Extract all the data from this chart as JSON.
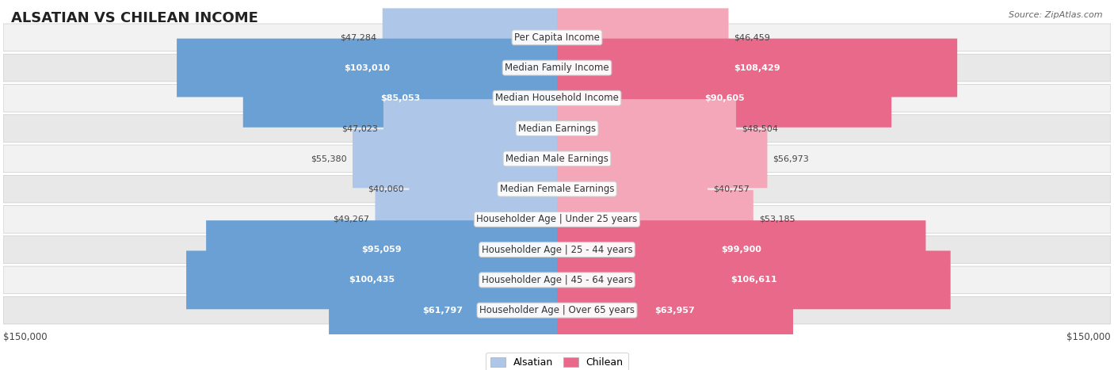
{
  "title": "ALSATIAN VS CHILEAN INCOME",
  "source": "Source: ZipAtlas.com",
  "categories": [
    "Per Capita Income",
    "Median Family Income",
    "Median Household Income",
    "Median Earnings",
    "Median Male Earnings",
    "Median Female Earnings",
    "Householder Age | Under 25 years",
    "Householder Age | 25 - 44 years",
    "Householder Age | 45 - 64 years",
    "Householder Age | Over 65 years"
  ],
  "alsatian_values": [
    47284,
    103010,
    85053,
    47023,
    55380,
    40060,
    49267,
    95059,
    100435,
    61797
  ],
  "chilean_values": [
    46459,
    108429,
    90605,
    48504,
    56973,
    40757,
    53185,
    99900,
    106611,
    63957
  ],
  "alsatian_color_light": "#aec6e8",
  "alsatian_color_dark": "#6aa0d4",
  "chilean_color_light": "#f4a7b9",
  "chilean_color_dark": "#e8698a",
  "max_value": 150000,
  "row_bg_color": "#f0f0f0",
  "row_alt_color": "#e8e8e8",
  "background_color": "#ffffff",
  "label_fontsize": 8.5,
  "title_fontsize": 13,
  "value_fontsize": 8,
  "legend_labels": [
    "Alsatian",
    "Chilean"
  ]
}
